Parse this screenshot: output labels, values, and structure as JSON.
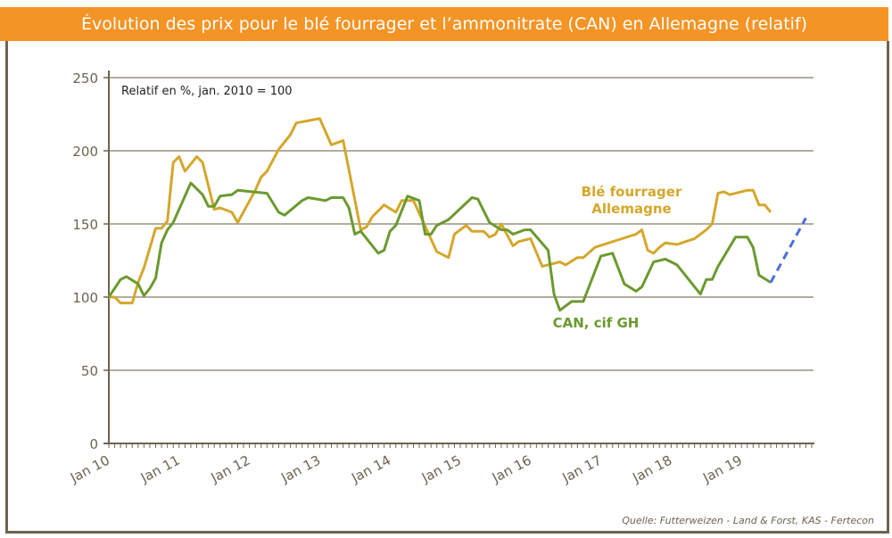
{
  "chart_data": {
    "type": "line",
    "title": "Évolution des prix pour le blé fourrager et l’ammonitrate (CAN) en Allemagne (relatif)",
    "subtitle": "Relatif en %, jan. 2010 = 100",
    "source": "Quelle: Futterweizen - Land & Forst, KAS - Fertecon",
    "xlabel": "",
    "ylabel": "",
    "ylim": [
      0,
      250
    ],
    "xlim": [
      "2010-01",
      "2020-01"
    ],
    "yticks": [
      0,
      50,
      100,
      150,
      200,
      250
    ],
    "xticks": [
      "Jan 10",
      "Jan 11",
      "Jan 12",
      "Jan 13",
      "Jan 14",
      "Jan 15",
      "Jan 16",
      "Jan 17",
      "Jan 18",
      "Jan 19"
    ],
    "grid": "horizontal",
    "series": [
      {
        "name": "Blé fourrager Allemagne",
        "label_lines": [
          "Blé fourrager",
          "Allemagne"
        ],
        "color": "#d4a72c",
        "points": [
          [
            "2010-01",
            100
          ],
          [
            "2010-02",
            100
          ],
          [
            "2010-03",
            96
          ],
          [
            "2010-05",
            96
          ],
          [
            "2010-06",
            110
          ],
          [
            "2010-07",
            120
          ],
          [
            "2010-09",
            147
          ],
          [
            "2010-10",
            147
          ],
          [
            "2010-11",
            152
          ],
          [
            "2010-12",
            192
          ],
          [
            "2011-01",
            196
          ],
          [
            "2011-02",
            186
          ],
          [
            "2011-04",
            196
          ],
          [
            "2011-05",
            192
          ],
          [
            "2011-07",
            160
          ],
          [
            "2011-08",
            161
          ],
          [
            "2011-10",
            158
          ],
          [
            "2011-11",
            151
          ],
          [
            "2012-02",
            173
          ],
          [
            "2012-03",
            182
          ],
          [
            "2012-04",
            186
          ],
          [
            "2012-06",
            201
          ],
          [
            "2012-08",
            211
          ],
          [
            "2012-09",
            219
          ],
          [
            "2013-01",
            222
          ],
          [
            "2013-03",
            204
          ],
          [
            "2013-05",
            207
          ],
          [
            "2013-08",
            146
          ],
          [
            "2013-09",
            148
          ],
          [
            "2013-10",
            155
          ],
          [
            "2013-12",
            163
          ],
          [
            "2014-02",
            158
          ],
          [
            "2014-03",
            166
          ],
          [
            "2014-05",
            166
          ],
          [
            "2014-09",
            131
          ],
          [
            "2014-11",
            127
          ],
          [
            "2014-12",
            143
          ],
          [
            "2015-02",
            149
          ],
          [
            "2015-03",
            145
          ],
          [
            "2015-05",
            145
          ],
          [
            "2015-06",
            141
          ],
          [
            "2015-07",
            143
          ],
          [
            "2015-08",
            150
          ],
          [
            "2015-10",
            135
          ],
          [
            "2015-11",
            138
          ],
          [
            "2016-01",
            140
          ],
          [
            "2016-03",
            121
          ],
          [
            "2016-06",
            124
          ],
          [
            "2016-07",
            122
          ],
          [
            "2016-09",
            127
          ],
          [
            "2016-10",
            127
          ],
          [
            "2016-12",
            134
          ],
          [
            "2017-07",
            143
          ],
          [
            "2017-08",
            146
          ],
          [
            "2017-09",
            132
          ],
          [
            "2017-10",
            130
          ],
          [
            "2017-11",
            134
          ],
          [
            "2017-12",
            137
          ],
          [
            "2018-02",
            136
          ],
          [
            "2018-05",
            140
          ],
          [
            "2018-07",
            146
          ],
          [
            "2018-08",
            150
          ],
          [
            "2018-09",
            171
          ],
          [
            "2018-10",
            172
          ],
          [
            "2018-11",
            170
          ],
          [
            "2019-02",
            173
          ],
          [
            "2019-03",
            173
          ],
          [
            "2019-04",
            163
          ],
          [
            "2019-05",
            163
          ],
          [
            "2019-06",
            158
          ]
        ]
      },
      {
        "name": "CAN, cif GH",
        "color": "#6b9a2f",
        "points": [
          [
            "2010-01",
            100
          ],
          [
            "2010-03",
            112
          ],
          [
            "2010-04",
            114
          ],
          [
            "2010-06",
            109
          ],
          [
            "2010-07",
            101
          ],
          [
            "2010-08",
            106
          ],
          [
            "2010-09",
            113
          ],
          [
            "2010-10",
            137
          ],
          [
            "2010-11",
            146
          ],
          [
            "2010-12",
            151
          ],
          [
            "2011-03",
            178
          ],
          [
            "2011-05",
            170
          ],
          [
            "2011-06",
            162
          ],
          [
            "2011-07",
            162
          ],
          [
            "2011-08",
            169
          ],
          [
            "2011-10",
            170
          ],
          [
            "2011-11",
            173
          ],
          [
            "2012-04",
            171
          ],
          [
            "2012-06",
            158
          ],
          [
            "2012-07",
            156
          ],
          [
            "2012-10",
            166
          ],
          [
            "2012-11",
            168
          ],
          [
            "2013-02",
            166
          ],
          [
            "2013-03",
            168
          ],
          [
            "2013-05",
            168
          ],
          [
            "2013-06",
            161
          ],
          [
            "2013-07",
            143
          ],
          [
            "2013-08",
            145
          ],
          [
            "2013-11",
            130
          ],
          [
            "2013-12",
            132
          ],
          [
            "2014-01",
            145
          ],
          [
            "2014-02",
            149
          ],
          [
            "2014-04",
            169
          ],
          [
            "2014-06",
            166
          ],
          [
            "2014-07",
            143
          ],
          [
            "2014-08",
            143
          ],
          [
            "2014-09",
            149
          ],
          [
            "2014-11",
            153
          ],
          [
            "2015-03",
            168
          ],
          [
            "2015-04",
            167
          ],
          [
            "2015-06",
            151
          ],
          [
            "2015-08",
            146
          ],
          [
            "2015-09",
            146
          ],
          [
            "2015-10",
            143
          ],
          [
            "2015-12",
            146
          ],
          [
            "2016-01",
            146
          ],
          [
            "2016-04",
            132
          ],
          [
            "2016-05",
            102
          ],
          [
            "2016-06",
            91
          ],
          [
            "2016-08",
            97
          ],
          [
            "2016-10",
            97
          ],
          [
            "2017-01",
            128
          ],
          [
            "2017-03",
            130
          ],
          [
            "2017-05",
            109
          ],
          [
            "2017-07",
            104
          ],
          [
            "2017-08",
            107
          ],
          [
            "2017-10",
            124
          ],
          [
            "2017-12",
            126
          ],
          [
            "2018-02",
            122
          ],
          [
            "2018-06",
            102
          ],
          [
            "2018-07",
            112
          ],
          [
            "2018-08",
            112
          ],
          [
            "2018-09",
            121
          ],
          [
            "2018-12",
            141
          ],
          [
            "2019-02",
            141
          ],
          [
            "2019-03",
            134
          ],
          [
            "2019-04",
            115
          ],
          [
            "2019-06",
            110
          ]
        ]
      },
      {
        "color": "#4a6fe0",
        "style": "dashed",
        "points": [
          [
            "2019-06",
            110
          ],
          [
            "2019-12",
            154
          ]
        ]
      }
    ]
  }
}
